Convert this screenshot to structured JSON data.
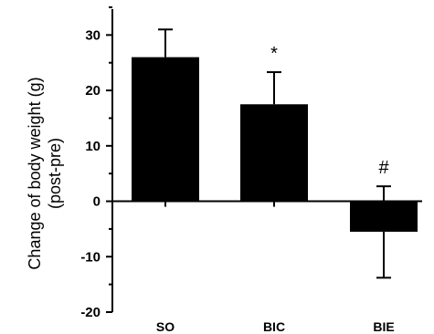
{
  "chart_data": {
    "type": "bar",
    "title": "",
    "xlabel": "",
    "ylabel_lines": [
      "Change of body weight (g)",
      "(post-pre)"
    ],
    "categories": [
      "SO",
      "BIC",
      "BIE"
    ],
    "values": [
      26,
      17.5,
      -5.5
    ],
    "error_upper": [
      31,
      23.3,
      2.7
    ],
    "error_lower": [
      null,
      null,
      -13.8
    ],
    "annotations": [
      "",
      "*",
      "#"
    ],
    "ylim": [
      -20,
      35
    ],
    "yticks": [
      -20,
      -10,
      0,
      10,
      20,
      30
    ],
    "ytick_labels": [
      "-20",
      "-10",
      "0",
      "10",
      "20",
      "30"
    ],
    "bar_color": "#000000",
    "grid": false,
    "legend": "none"
  }
}
